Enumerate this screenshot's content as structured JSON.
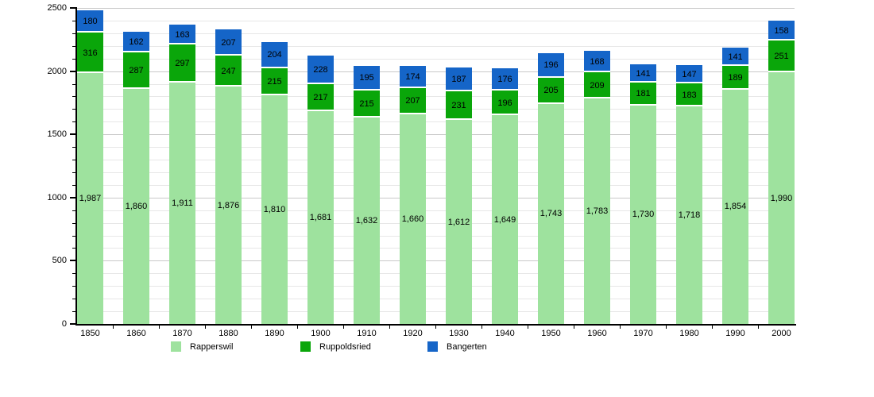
{
  "chart_data": {
    "type": "bar",
    "stacked": true,
    "title": "",
    "xlabel": "",
    "ylabel": "",
    "categories": [
      "1850",
      "1860",
      "1870",
      "1880",
      "1890",
      "1900",
      "1910",
      "1920",
      "1930",
      "1940",
      "1950",
      "1960",
      "1970",
      "1980",
      "1990",
      "2000"
    ],
    "series": [
      {
        "name": "Rapperswil",
        "color": "#9ee29e",
        "values": [
          1987,
          1860,
          1911,
          1876,
          1810,
          1681,
          1632,
          1660,
          1612,
          1649,
          1743,
          1783,
          1730,
          1718,
          1854,
          1990
        ],
        "label_format": "thousands-comma"
      },
      {
        "name": "Ruppoldsried",
        "color": "#0aa60a",
        "values": [
          316,
          287,
          297,
          247,
          215,
          217,
          215,
          207,
          231,
          196,
          205,
          209,
          181,
          183,
          189,
          251
        ],
        "label_format": "plain"
      },
      {
        "name": "Bangerten",
        "color": "#1565c8",
        "values": [
          180,
          162,
          163,
          207,
          204,
          228,
          195,
          174,
          187,
          176,
          196,
          168,
          141,
          147,
          141,
          158
        ],
        "label_format": "plain"
      }
    ],
    "ylim": [
      0,
      2500
    ],
    "y_major_ticks": [
      0,
      500,
      1000,
      1500,
      2000,
      2500
    ],
    "y_minor_step": 100,
    "grid": "horizontal",
    "legend_position": "bottom",
    "legend": [
      "Rapperswil",
      "Ruppoldsried",
      "Bangerten"
    ]
  },
  "colors": {
    "background": "#ffffff",
    "axis": "#000000",
    "grid_minor": "#e7e7e7",
    "grid_major": "#c9c9c9",
    "label_text": "#000000"
  }
}
